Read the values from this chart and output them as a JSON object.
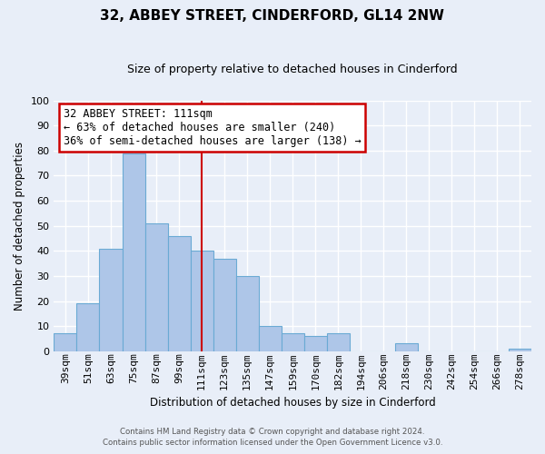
{
  "title": "32, ABBEY STREET, CINDERFORD, GL14 2NW",
  "subtitle": "Size of property relative to detached houses in Cinderford",
  "xlabel": "Distribution of detached houses by size in Cinderford",
  "ylabel": "Number of detached properties",
  "bar_labels": [
    "39sqm",
    "51sqm",
    "63sqm",
    "75sqm",
    "87sqm",
    "99sqm",
    "111sqm",
    "123sqm",
    "135sqm",
    "147sqm",
    "159sqm",
    "170sqm",
    "182sqm",
    "194sqm",
    "206sqm",
    "218sqm",
    "230sqm",
    "242sqm",
    "254sqm",
    "266sqm",
    "278sqm"
  ],
  "bar_values": [
    7,
    19,
    41,
    79,
    51,
    46,
    40,
    37,
    30,
    10,
    7,
    6,
    7,
    0,
    0,
    3,
    0,
    0,
    0,
    0,
    1
  ],
  "bar_color": "#aec6e8",
  "bar_edge_color": "#6aaad4",
  "vline_x_label": "111sqm",
  "vline_color": "#cc0000",
  "annotation_title": "32 ABBEY STREET: 111sqm",
  "annotation_line1": "← 63% of detached houses are smaller (240)",
  "annotation_line2": "36% of semi-detached houses are larger (138) →",
  "annotation_box_color": "#ffffff",
  "annotation_border_color": "#cc0000",
  "ylim": [
    0,
    100
  ],
  "yticks": [
    0,
    10,
    20,
    30,
    40,
    50,
    60,
    70,
    80,
    90,
    100
  ],
  "footnote1": "Contains HM Land Registry data © Crown copyright and database right 2024.",
  "footnote2": "Contains public sector information licensed under the Open Government Licence v3.0.",
  "background_color": "#e8eef8",
  "grid_color": "#d0d8e8",
  "title_fontsize": 11,
  "subtitle_fontsize": 9,
  "axis_fontsize": 8.5,
  "tick_fontsize": 8
}
